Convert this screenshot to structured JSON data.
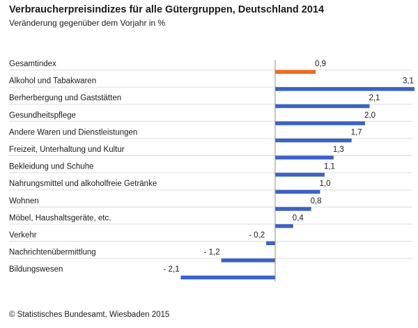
{
  "chart_data": {
    "type": "bar",
    "orientation": "horizontal",
    "title": "Verbraucherpreisindizes für alle Gütergruppen, Deutschland 2014",
    "subtitle": "Veränderung gegenüber dem Vorjahr in %",
    "xlabel": "",
    "ylabel": "",
    "xlim": [
      -2.1,
      3.1
    ],
    "grid": false,
    "categories": [
      "Gesamtindex",
      "Alkohol und Tabakwaren",
      "Berherbergung und Gaststätten",
      "Gesundheitspflege",
      "Andere Waren und Dienstleistungen",
      "Freizeit, Unterhaltung und Kultur",
      "Bekleidung und Schuhe",
      "Nahrungsmittel und alkoholfreie Getränke",
      "Wohnen",
      "Möbel, Haushaltsgeräte, etc.",
      "Verkehr",
      "Nachrichtenübermittlung",
      "Bildungswesen"
    ],
    "values": [
      0.9,
      3.1,
      2.1,
      2.0,
      1.7,
      1.3,
      1.1,
      1.0,
      0.8,
      0.4,
      -0.2,
      -1.2,
      -2.1
    ],
    "data_labels": [
      "0,9",
      "3,1",
      "2,1",
      "2,0",
      "1,7",
      "1,3",
      "1,1",
      "1,0",
      "0,8",
      "0,4",
      "- 0,2",
      "- 1,2",
      "- 2,1"
    ],
    "highlight_index": 0,
    "colors": {
      "bar": "#3a62c8",
      "highlight": "#f06a1c",
      "separator": "#dcdcdc",
      "zero_line": "#8c8c8c",
      "text": "#1a1a1a"
    }
  },
  "source": "© Statistisches Bundesamt, Wiesbaden 2015"
}
